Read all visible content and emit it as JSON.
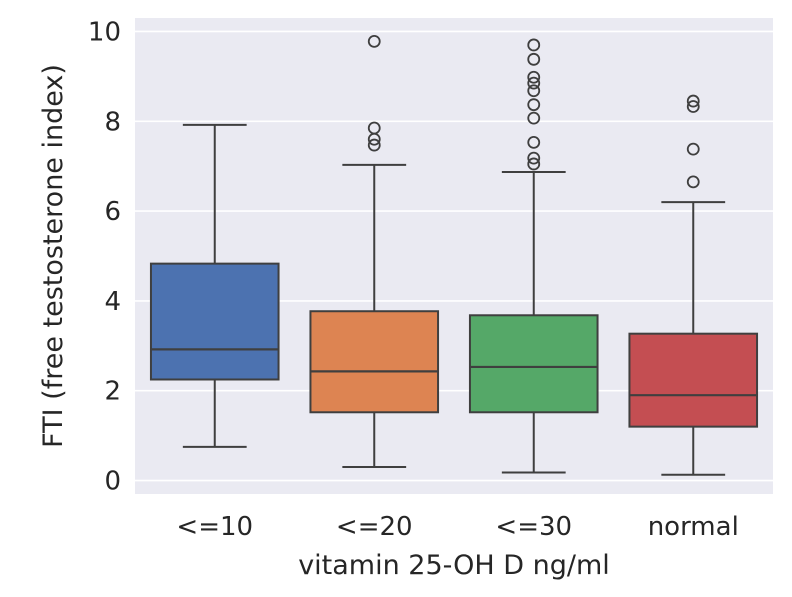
{
  "chart_data": {
    "type": "box",
    "xlabel": "vitamin 25-OH D ng/ml",
    "ylabel": "FTI (free testosterone index)",
    "ylim": [
      -0.3,
      10.3
    ],
    "yticks": [
      0,
      2,
      4,
      6,
      8,
      10
    ],
    "grid": true,
    "categories": [
      {
        "label": "<=10",
        "color": "#4c72b0",
        "whisker_low": 0.75,
        "q1": 2.25,
        "median": 2.92,
        "q3": 4.83,
        "whisker_high": 7.92,
        "outliers": []
      },
      {
        "label": "<=20",
        "color": "#dd8452",
        "whisker_low": 0.3,
        "q1": 1.52,
        "median": 2.43,
        "q3": 3.77,
        "whisker_high": 7.03,
        "outliers": [
          7.47,
          7.6,
          7.85,
          9.78
        ]
      },
      {
        "label": "<=30",
        "color": "#55a868",
        "whisker_low": 0.18,
        "q1": 1.52,
        "median": 2.53,
        "q3": 3.68,
        "whisker_high": 6.87,
        "outliers": [
          7.05,
          7.18,
          7.53,
          8.07,
          8.37,
          8.68,
          8.85,
          8.98,
          9.38,
          9.7
        ]
      },
      {
        "label": "normal",
        "color": "#c44e52",
        "whisker_low": 0.13,
        "q1": 1.2,
        "median": 1.9,
        "q3": 3.27,
        "whisker_high": 6.2,
        "outliers": [
          6.65,
          7.38,
          8.33,
          8.45
        ]
      }
    ]
  },
  "style": {
    "plot_background": "#eaeaf2",
    "grid_color": "#ffffff",
    "line_color": "#3f3f3f",
    "text_color": "#262626"
  }
}
